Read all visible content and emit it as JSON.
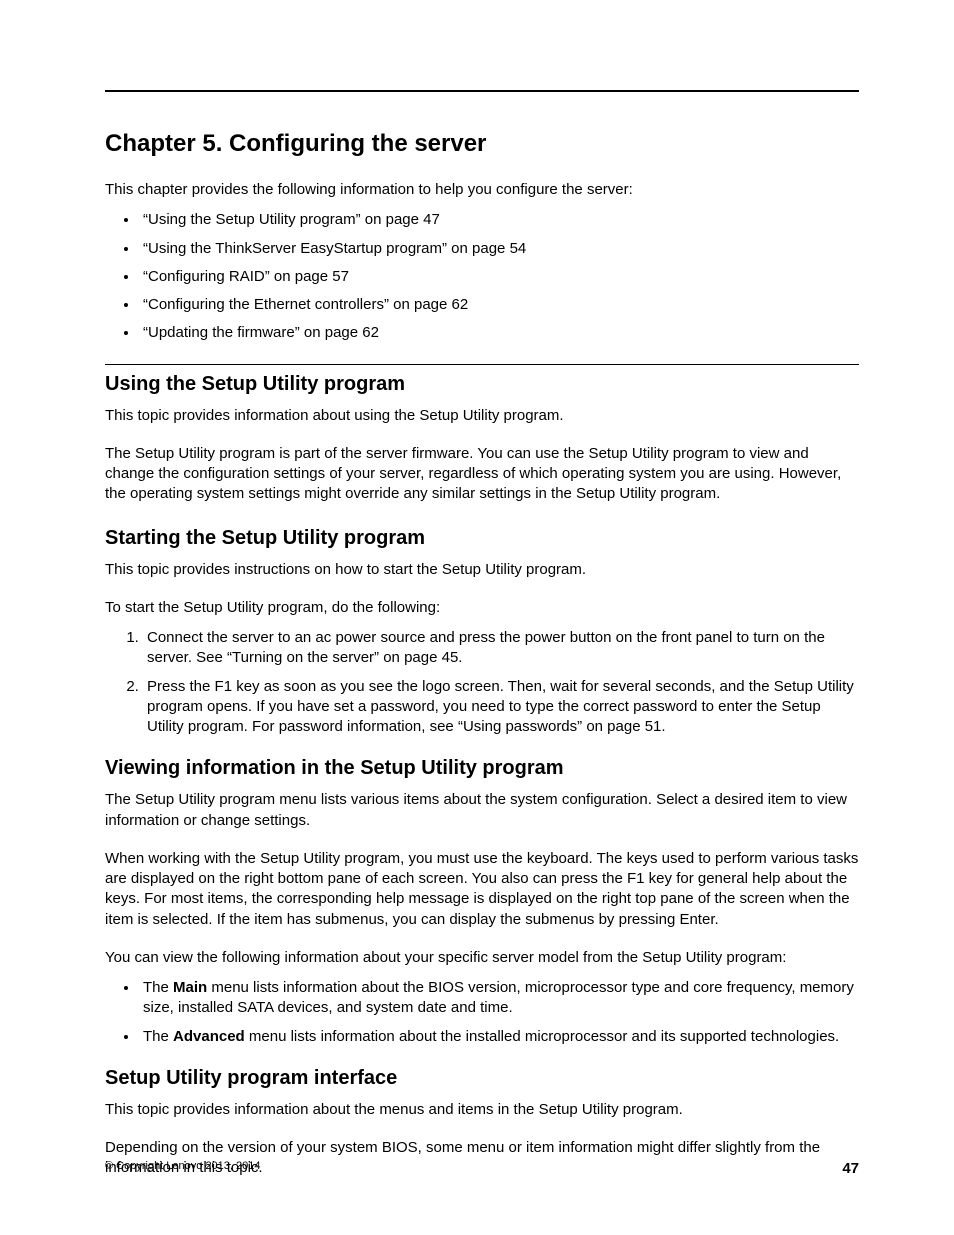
{
  "chapter_title": "Chapter 5.   Configuring the server",
  "intro": "This chapter provides the following information to help you configure the server:",
  "toc_items": [
    "“Using the Setup Utility program” on page 47",
    "“Using the ThinkServer EasyStartup program” on page 54",
    "“Configuring RAID” on page 57",
    "“Configuring the Ethernet controllers” on page 62",
    "“Updating the firmware” on page 62"
  ],
  "s1": {
    "heading": "Using the Setup Utility program",
    "p1": "This topic provides information about using the Setup Utility program.",
    "p2": "The Setup Utility program is part of the server firmware. You can use the Setup Utility program to view and change the configuration settings of your server, regardless of which operating system you are using. However, the operating system settings might override any similar settings in the Setup Utility program."
  },
  "s2": {
    "heading": "Starting the Setup Utility program",
    "p1": "This topic provides instructions on how to start the Setup Utility program.",
    "p2": "To start the Setup Utility program, do the following:",
    "steps": [
      "Connect the server to an ac power source and press the power button on the front panel to turn on the server. See “Turning on the server” on page 45.",
      "Press the F1 key as soon as you see the logo screen. Then, wait for several seconds, and the Setup Utility program opens. If you have set a password, you need to type the correct password to enter the Setup Utility program. For password information, see “Using passwords” on page 51."
    ]
  },
  "s3": {
    "heading": "Viewing information in the Setup Utility program",
    "p1": "The Setup Utility program menu lists various items about the system configuration. Select a desired item to view information or change settings.",
    "p2": "When working with the Setup Utility program, you must use the keyboard. The keys used to perform various tasks are displayed on the right bottom pane of each screen. You also can press the F1 key for general help about the keys. For most items, the corresponding help message is displayed on the right top pane of the screen when the item is selected. If the item has submenus, you can display the submenus by pressing Enter.",
    "p3": "You can view the following information about your specific server model from the Setup Utility program:",
    "b1_pre": "The ",
    "b1_bold": "Main",
    "b1_post": " menu lists information about the BIOS version, microprocessor type and core frequency, memory size, installed SATA devices, and system date and time.",
    "b2_pre": "The ",
    "b2_bold": "Advanced",
    "b2_post": " menu lists information about the installed microprocessor and its supported technologies."
  },
  "s4": {
    "heading": "Setup Utility program interface",
    "p1": "This topic provides information about the menus and items in the Setup Utility program.",
    "p2": "Depending on the version of your system BIOS, some menu or item information might differ slightly from the information in this topic."
  },
  "footer": {
    "copyright": "© Copyright Lenovo 2013, 2014",
    "page_number": "47"
  }
}
